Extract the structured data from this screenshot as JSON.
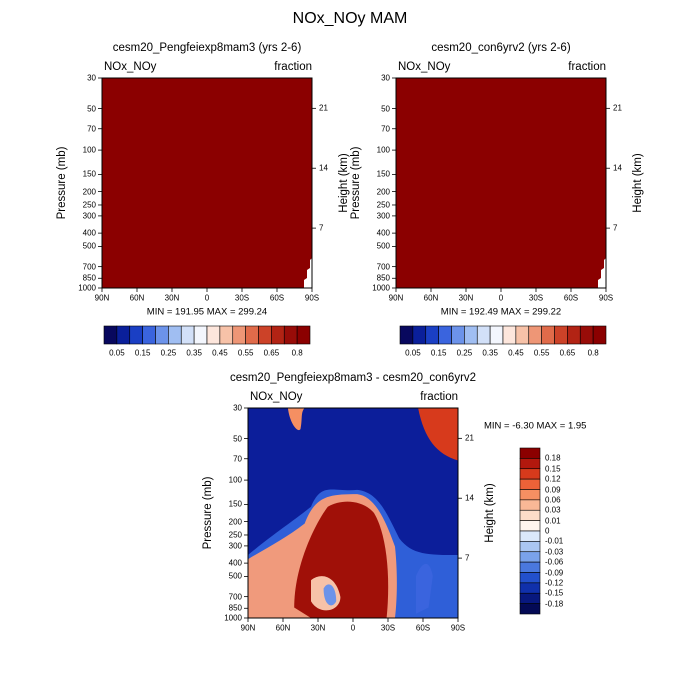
{
  "main_title": "NOx_NOy MAM",
  "panels": [
    {
      "title": "cesm20_Pengfeiexp8mam3 (yrs 2-6)",
      "left_label": "NOx_NOy",
      "right_label": "fraction",
      "minmax": "MIN = 191.95  MAX = 299.24",
      "ylabel": "Pressure (mb)",
      "y2label": "Height (km)"
    },
    {
      "title": "cesm20_con6yrv2 (yrs 2-6)",
      "left_label": "NOx_NOy",
      "right_label": "fraction",
      "minmax": "MIN = 192.49  MAX = 299.22",
      "ylabel": "Pressure (mb)",
      "y2label": "Height (km)"
    },
    {
      "title": "cesm20_Pengfeiexp8mam3 - cesm20_con6yrv2",
      "left_label": "NOx_NOy",
      "right_label": "fraction",
      "minmax": "MIN =  -6.30  MAX =   1.95",
      "ylabel": "Pressure (mb)",
      "y2label": "Height (km)"
    }
  ],
  "chart_data": [
    {
      "type": "heatmap",
      "title": "cesm20_Pengfeiexp8mam3 (yrs 2-6)",
      "xlabel": "",
      "ylabel": "Pressure (mb)",
      "y2label": "Height (km)",
      "x_ticks": [
        "90N",
        "60N",
        "30N",
        "0",
        "30S",
        "60S",
        "90S"
      ],
      "y_ticks": [
        30,
        50,
        70,
        100,
        150,
        200,
        250,
        300,
        400,
        500,
        700,
        850,
        1000
      ],
      "y2_ticks": [
        7,
        14,
        21
      ],
      "ylim": [
        1000,
        30
      ],
      "y_scale": "log",
      "min": 191.95,
      "max": 299.24,
      "field_color": "#8b0000",
      "colorbar": {
        "labels": [
          "0.05",
          "0.15",
          "0.25",
          "0.35",
          "0.45",
          "0.55",
          "0.65",
          "0.8"
        ],
        "colors": [
          "#08085e",
          "#0a1f9a",
          "#1a3fc4",
          "#3a64de",
          "#6c93ea",
          "#a0bef2",
          "#d2e0f8",
          "#f3f6fd",
          "#fde6dc",
          "#f7c2a8",
          "#ee9676",
          "#e06b4a",
          "#cc4228",
          "#b22314",
          "#980c08",
          "#8b0000"
        ]
      }
    },
    {
      "type": "heatmap",
      "title": "cesm20_con6yrv2 (yrs 2-6)",
      "xlabel": "",
      "ylabel": "Pressure (mb)",
      "y2label": "Height (km)",
      "x_ticks": [
        "90N",
        "60N",
        "30N",
        "0",
        "30S",
        "60S",
        "90S"
      ],
      "y_ticks": [
        30,
        50,
        70,
        100,
        150,
        200,
        250,
        300,
        400,
        500,
        700,
        850,
        1000
      ],
      "y2_ticks": [
        7,
        14,
        21
      ],
      "ylim": [
        1000,
        30
      ],
      "y_scale": "log",
      "min": 192.49,
      "max": 299.22,
      "field_color": "#8b0000",
      "colorbar": {
        "labels": [
          "0.05",
          "0.15",
          "0.25",
          "0.35",
          "0.45",
          "0.55",
          "0.65",
          "0.8"
        ],
        "colors": [
          "#08085e",
          "#0a1f9a",
          "#1a3fc4",
          "#3a64de",
          "#6c93ea",
          "#a0bef2",
          "#d2e0f8",
          "#f3f6fd",
          "#fde6dc",
          "#f7c2a8",
          "#ee9676",
          "#e06b4a",
          "#cc4228",
          "#b22314",
          "#980c08",
          "#8b0000"
        ]
      }
    },
    {
      "type": "heatmap",
      "title": "cesm20_Pengfeiexp8mam3 - cesm20_con6yrv2",
      "xlabel": "",
      "ylabel": "Pressure (mb)",
      "y2label": "Height (km)",
      "x_ticks": [
        "90N",
        "60N",
        "30N",
        "0",
        "30S",
        "60S",
        "90S"
      ],
      "y_ticks": [
        30,
        50,
        70,
        100,
        150,
        200,
        250,
        300,
        400,
        500,
        700,
        850,
        1000
      ],
      "y2_ticks": [
        7,
        14,
        21
      ],
      "ylim": [
        1000,
        30
      ],
      "y_scale": "log",
      "min": -6.3,
      "max": 1.95,
      "background_color": "#0c1e9a",
      "colorbar": {
        "labels": [
          "0.18",
          "0.15",
          "0.12",
          "0.09",
          "0.06",
          "0.03",
          "0.01",
          "0",
          "-0.01",
          "-0.03",
          "-0.06",
          "-0.09",
          "-0.12",
          "-0.15",
          "-0.18"
        ],
        "colors": [
          "#8b0000",
          "#b2180e",
          "#d73a1c",
          "#ec6238",
          "#f58f62",
          "#f9b896",
          "#fcdcc8",
          "#fff5ef",
          "#dbe8fa",
          "#aac6f2",
          "#7aa2ea",
          "#4a78de",
          "#2350cc",
          "#1030ab",
          "#08187e",
          "#040a55"
        ]
      }
    }
  ]
}
